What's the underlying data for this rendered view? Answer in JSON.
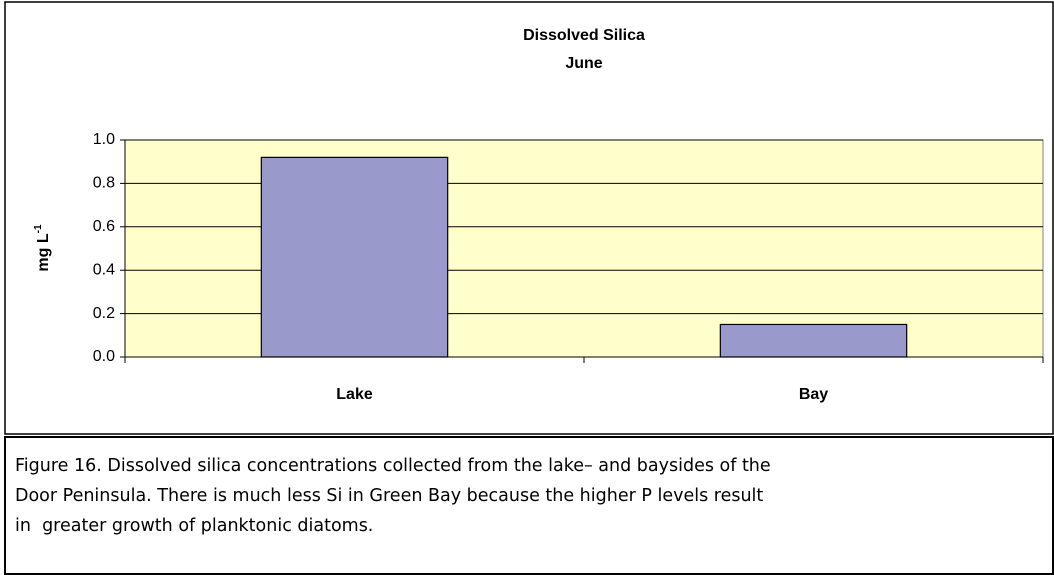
{
  "chart_data": {
    "type": "bar",
    "title": [
      "Dissolved Silica",
      "June"
    ],
    "y_label": {
      "text": "mg L",
      "superscript": "-1"
    },
    "categories": [
      "Lake",
      "Bay"
    ],
    "values": [
      0.92,
      0.15
    ],
    "color": "#9999cc",
    "plot_background": "#ffffcc",
    "ylim": [
      0,
      1
    ],
    "yticks": [
      {
        "value": 0,
        "label": "0.0"
      },
      0.2,
      0.4,
      0.6,
      0.8,
      {
        "value": 1,
        "label": "1.0"
      }
    ],
    "grid": true
  },
  "caption": [
    "Figure 16. Dissolved silica concentrations collected from the lake– and baysides of the",
    "Door Peninsula. There is much less Si in Green Bay because the higher P levels result",
    "in  greater growth of planktonic diatoms."
  ]
}
